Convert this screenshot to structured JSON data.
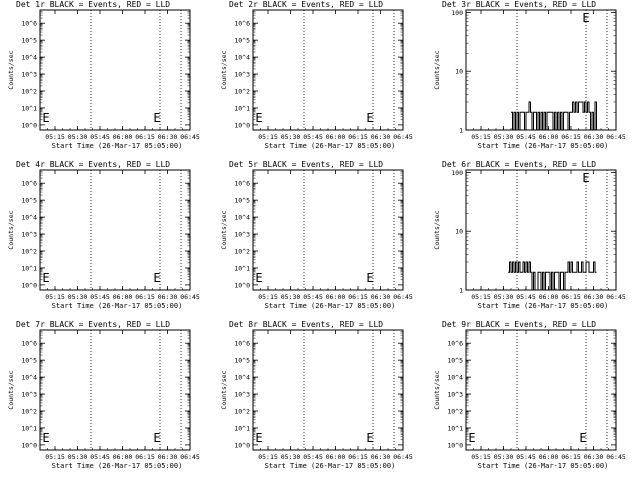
{
  "chart_data": [
    {
      "type": "line",
      "title": "Det 1r BLACK = Events, RED = LLD",
      "xlabel": "Start Time (26-Mar-17 05:05:00)",
      "ylabel": "Counts/sec",
      "xticks": [
        "05:15",
        "05:30",
        "05:45",
        "06:00",
        "06:15",
        "06:30",
        "06:45"
      ],
      "x_range_minutes": [
        5,
        55
      ],
      "yscale": "log",
      "ylim": [
        0.5,
        6000000
      ],
      "yticks": [
        "10^0",
        "10^1",
        "10^2",
        "10^3",
        "10^4",
        "10^5",
        "10^6"
      ],
      "vlines_minutes": [
        22,
        45,
        52
      ],
      "markers": [
        {
          "label": "E",
          "x_minutes": 7
        },
        {
          "label": "E",
          "x_minutes": 44
        }
      ],
      "series": []
    },
    {
      "type": "line",
      "title": "Det 2r BLACK = Events, RED = LLD",
      "xlabel": "Start Time (26-Mar-17 05:05:00)",
      "ylabel": "Counts/sec",
      "xticks": [
        "05:15",
        "05:30",
        "05:45",
        "06:00",
        "06:15",
        "06:30",
        "06:45"
      ],
      "x_range_minutes": [
        5,
        55
      ],
      "yscale": "log",
      "ylim": [
        0.5,
        6000000
      ],
      "yticks": [
        "10^0",
        "10^1",
        "10^2",
        "10^3",
        "10^4",
        "10^5",
        "10^6"
      ],
      "vlines_minutes": [
        22,
        45,
        52
      ],
      "markers": [
        {
          "label": "E",
          "x_minutes": 7
        },
        {
          "label": "E",
          "x_minutes": 44
        }
      ],
      "series": []
    },
    {
      "type": "line",
      "title": "Det 3r BLACK = Events, RED = LLD",
      "xlabel": "Start Time (26-Mar-17 05:05:00)",
      "ylabel": "Counts/sec",
      "xticks": [
        "05:15",
        "05:30",
        "05:45",
        "06:00",
        "06:15",
        "06:30",
        "06:45"
      ],
      "x_range_minutes": [
        5,
        55
      ],
      "yscale": "log",
      "ylim": [
        1,
        110
      ],
      "yticks": [
        "1",
        "10",
        "100"
      ],
      "vlines_minutes": [
        22,
        45,
        52
      ],
      "markers": [
        {
          "label": "E",
          "x_minutes": 45
        }
      ],
      "series": [
        {
          "color": "#000000",
          "x": [
            20,
            20.5,
            21,
            21.5,
            22,
            22.5,
            23,
            23.5,
            24,
            24.5,
            25,
            25.5,
            26,
            26.5,
            27,
            27.5,
            28,
            28.5,
            29,
            29.5,
            30,
            30.5,
            31,
            31.5,
            32,
            32.5,
            33,
            33.5,
            34,
            34.5,
            35,
            35.5,
            36,
            36.5,
            37,
            37.5,
            38,
            38.5,
            39,
            39.5,
            40,
            40.5,
            41,
            41.5,
            42,
            42.5,
            43,
            43.5,
            44,
            44.5,
            45,
            45.5,
            46,
            46.5,
            47,
            47.5,
            48,
            48.5,
            49,
            49.5,
            50
          ],
          "y": [
            2,
            1,
            2,
            1,
            2,
            1,
            2,
            2,
            2,
            1,
            2,
            2,
            3,
            2,
            1,
            2,
            2,
            1,
            2,
            1,
            2,
            1,
            2,
            1,
            2,
            2,
            2,
            2,
            1,
            2,
            1,
            2,
            1,
            2,
            1,
            2,
            2,
            2,
            1,
            2,
            2,
            3,
            2,
            3,
            2,
            3,
            3,
            3,
            2,
            3,
            2,
            3,
            2,
            1,
            2,
            1,
            3,
            1,
            1,
            1,
            1
          ]
        }
      ]
    },
    {
      "type": "line",
      "title": "Det 4r BLACK = Events, RED = LLD",
      "xlabel": "Start Time (26-Mar-17 05:05:00)",
      "ylabel": "Counts/sec",
      "xticks": [
        "05:15",
        "05:30",
        "05:45",
        "06:00",
        "06:15",
        "06:30",
        "06:45"
      ],
      "x_range_minutes": [
        5,
        55
      ],
      "yscale": "log",
      "ylim": [
        0.5,
        6000000
      ],
      "yticks": [
        "10^0",
        "10^1",
        "10^2",
        "10^3",
        "10^4",
        "10^5",
        "10^6"
      ],
      "vlines_minutes": [
        22,
        45,
        52
      ],
      "markers": [
        {
          "label": "E",
          "x_minutes": 7
        },
        {
          "label": "E",
          "x_minutes": 44
        }
      ],
      "series": []
    },
    {
      "type": "line",
      "title": "Det 5r BLACK = Events, RED = LLD",
      "xlabel": "Start Time (26-Mar-17 05:05:00)",
      "ylabel": "Counts/sec",
      "xticks": [
        "05:15",
        "05:30",
        "05:45",
        "06:00",
        "06:15",
        "06:30",
        "06:45"
      ],
      "x_range_minutes": [
        5,
        55
      ],
      "yscale": "log",
      "ylim": [
        0.5,
        6000000
      ],
      "yticks": [
        "10^0",
        "10^1",
        "10^2",
        "10^3",
        "10^4",
        "10^5",
        "10^6"
      ],
      "vlines_minutes": [
        22,
        45,
        52
      ],
      "markers": [
        {
          "label": "E",
          "x_minutes": 7
        },
        {
          "label": "E",
          "x_minutes": 44
        }
      ],
      "series": []
    },
    {
      "type": "line",
      "title": "Det 6r BLACK = Events, RED = LLD",
      "xlabel": "Start Time (26-Mar-17 05:05:00)",
      "ylabel": "Counts/sec",
      "xticks": [
        "05:15",
        "05:30",
        "05:45",
        "06:00",
        "06:15",
        "06:30",
        "06:45"
      ],
      "x_range_minutes": [
        5,
        55
      ],
      "yscale": "log",
      "ylim": [
        1,
        110
      ],
      "yticks": [
        "1",
        "10",
        "100"
      ],
      "vlines_minutes": [
        22,
        45,
        52
      ],
      "markers": [
        {
          "label": "E",
          "x_minutes": 45
        }
      ],
      "series": [
        {
          "color": "#000000",
          "x": [
            19,
            19.5,
            20,
            20.5,
            21,
            21.5,
            22,
            22.5,
            23,
            23.5,
            24,
            24.5,
            25,
            25.5,
            26,
            26.5,
            27,
            27.5,
            28,
            28.5,
            29,
            29.5,
            30,
            30.5,
            31,
            31.5,
            32,
            32.5,
            33,
            33.5,
            34,
            34.5,
            35,
            35.5,
            36,
            36.5,
            37,
            37.5,
            38,
            38.5,
            39,
            39.5,
            40,
            40.5,
            41,
            41.5,
            42,
            42.5,
            43,
            43.5,
            44,
            44.5,
            45,
            45.5,
            46,
            46.5,
            47,
            47.5,
            48
          ],
          "y": [
            2,
            3,
            2,
            3,
            2,
            3,
            2,
            3,
            2,
            2,
            3,
            2,
            3,
            2,
            3,
            2,
            1,
            2,
            1,
            1,
            2,
            2,
            1,
            2,
            1,
            2,
            2,
            2,
            1,
            2,
            1,
            2,
            2,
            2,
            1,
            2,
            2,
            1,
            2,
            2,
            3,
            2,
            3,
            2,
            2,
            2,
            3,
            2,
            2,
            3,
            2,
            2,
            3,
            3,
            2,
            2,
            2,
            3,
            2
          ]
        }
      ]
    },
    {
      "type": "line",
      "title": "Det 7r BLACK = Events, RED = LLD",
      "xlabel": "Start Time (26-Mar-17 05:05:00)",
      "ylabel": "Counts/sec",
      "xticks": [
        "05:15",
        "05:30",
        "05:45",
        "06:00",
        "06:15",
        "06:30",
        "06:45"
      ],
      "x_range_minutes": [
        5,
        55
      ],
      "yscale": "log",
      "ylim": [
        0.5,
        6000000
      ],
      "yticks": [
        "10^0",
        "10^1",
        "10^2",
        "10^3",
        "10^4",
        "10^5",
        "10^6"
      ],
      "vlines_minutes": [
        22,
        45,
        52
      ],
      "markers": [
        {
          "label": "E",
          "x_minutes": 7
        },
        {
          "label": "E",
          "x_minutes": 44
        }
      ],
      "series": []
    },
    {
      "type": "line",
      "title": "Det 8r BLACK = Events, RED = LLD",
      "xlabel": "Start Time (26-Mar-17 05:05:00)",
      "ylabel": "Counts/sec",
      "xticks": [
        "05:15",
        "05:30",
        "05:45",
        "06:00",
        "06:15",
        "06:30",
        "06:45"
      ],
      "x_range_minutes": [
        5,
        55
      ],
      "yscale": "log",
      "ylim": [
        0.5,
        6000000
      ],
      "yticks": [
        "10^0",
        "10^1",
        "10^2",
        "10^3",
        "10^4",
        "10^5",
        "10^6"
      ],
      "vlines_minutes": [
        22,
        45,
        52
      ],
      "markers": [
        {
          "label": "E",
          "x_minutes": 7
        },
        {
          "label": "E",
          "x_minutes": 44
        }
      ],
      "series": []
    },
    {
      "type": "line",
      "title": "Det 9r BLACK = Events, RED = LLD",
      "xlabel": "Start Time (26-Mar-17 05:05:00)",
      "ylabel": "Counts/sec",
      "xticks": [
        "05:15",
        "05:30",
        "05:45",
        "06:00",
        "06:15",
        "06:30",
        "06:45"
      ],
      "x_range_minutes": [
        5,
        55
      ],
      "yscale": "log",
      "ylim": [
        0.5,
        6000000
      ],
      "yticks": [
        "10^0",
        "10^1",
        "10^2",
        "10^3",
        "10^4",
        "10^5",
        "10^6"
      ],
      "vlines_minutes": [
        22,
        45,
        52
      ],
      "markers": [
        {
          "label": "E",
          "x_minutes": 7
        },
        {
          "label": "E",
          "x_minutes": 44
        }
      ],
      "series": []
    }
  ]
}
